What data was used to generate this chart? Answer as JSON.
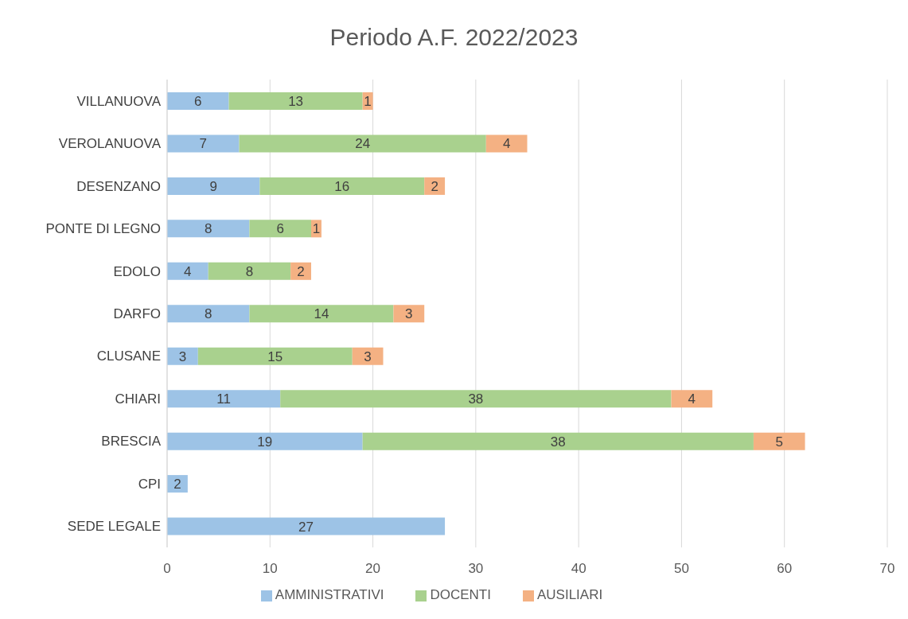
{
  "chart_data": {
    "type": "bar",
    "orientation": "horizontal",
    "stacked": true,
    "title": "Periodo A.F. 2022/2023",
    "categories": [
      "VILLANUOVA",
      "VEROLANUOVA",
      "DESENZANO",
      "PONTE DI LEGNO",
      "EDOLO",
      "DARFO",
      "CLUSANE",
      "CHIARI",
      "BRESCIA",
      "CPI",
      "SEDE LEGALE"
    ],
    "series": [
      {
        "name": "AMMINISTRATIVI",
        "color": "#9dc3e6",
        "values": [
          6,
          7,
          9,
          8,
          4,
          8,
          3,
          11,
          19,
          2,
          27
        ]
      },
      {
        "name": "DOCENTI",
        "color": "#a9d18e",
        "values": [
          13,
          24,
          16,
          6,
          8,
          14,
          15,
          38,
          38,
          null,
          null
        ]
      },
      {
        "name": "AUSILIARI",
        "color": "#f4b183",
        "values": [
          1,
          4,
          2,
          1,
          2,
          3,
          3,
          4,
          5,
          null,
          null
        ]
      }
    ],
    "xlim": [
      0,
      70
    ],
    "xticks": [
      0,
      10,
      20,
      30,
      40,
      50,
      60,
      70
    ],
    "grid": "x",
    "legend": "bottom",
    "data_labels": true
  }
}
